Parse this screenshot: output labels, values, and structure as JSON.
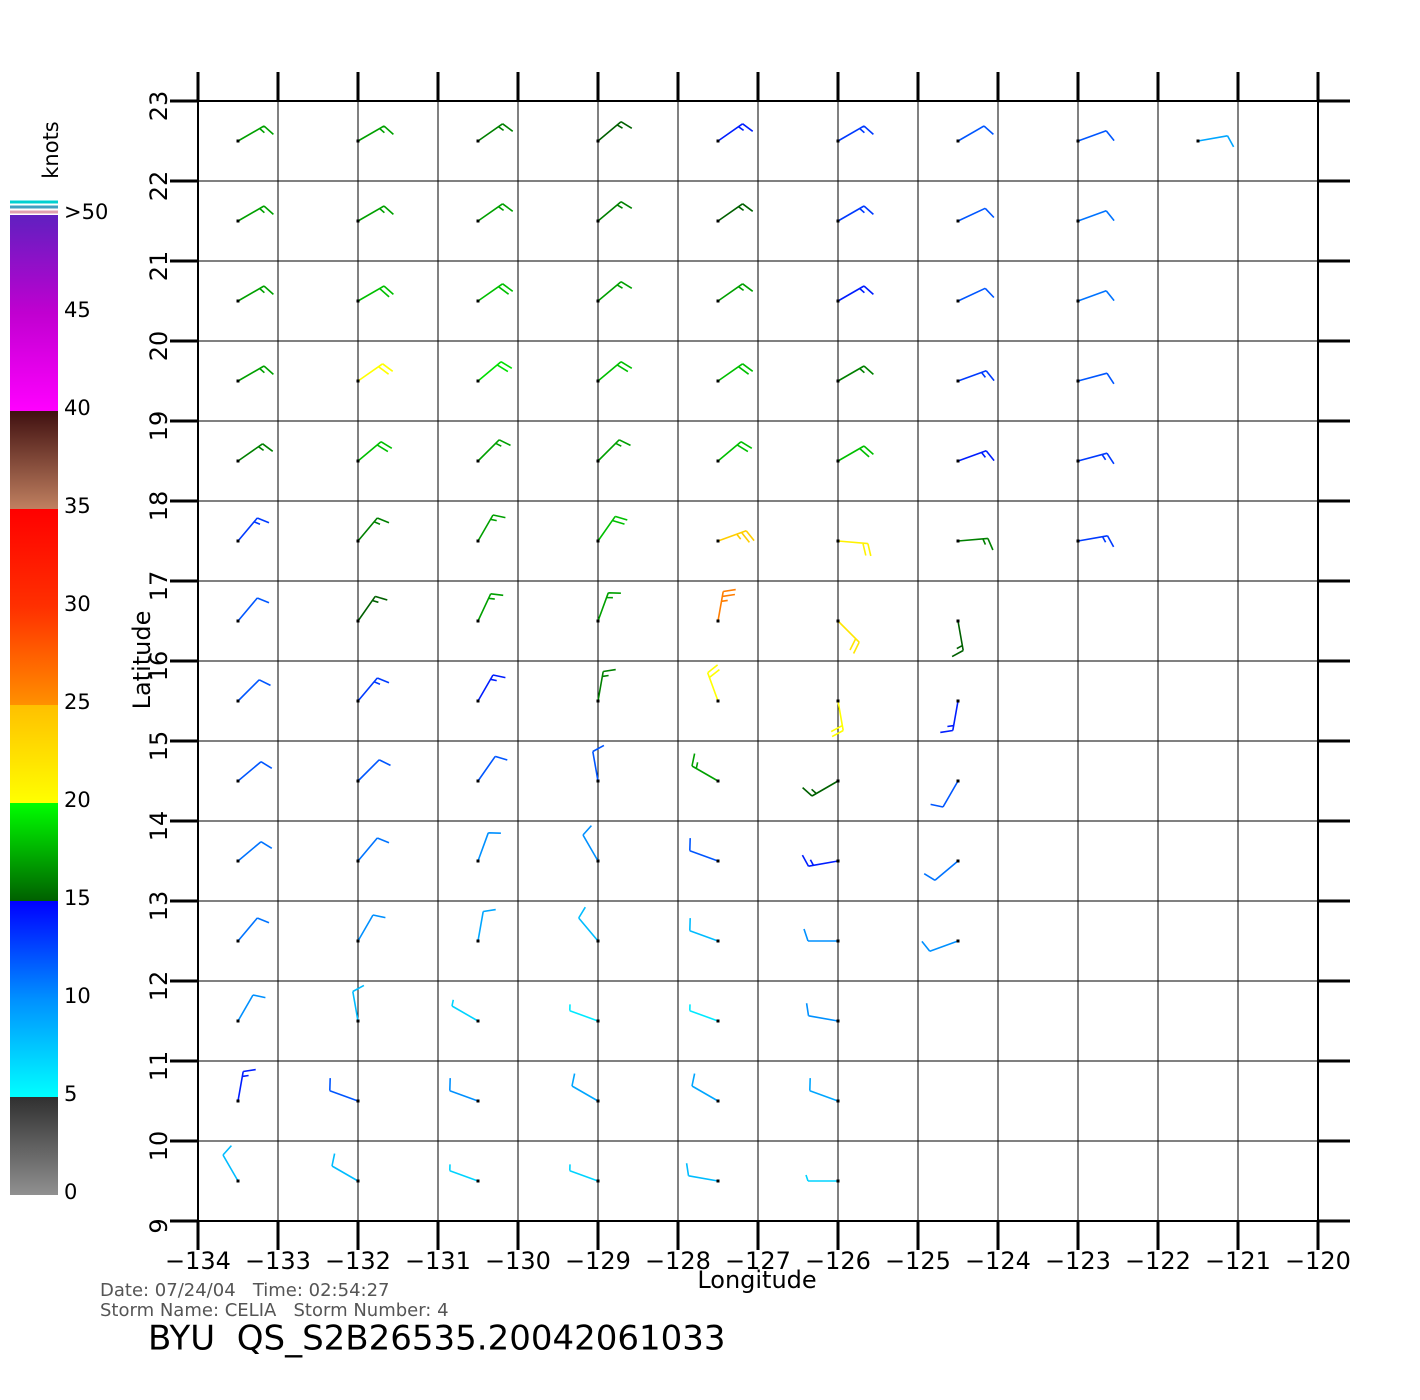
{
  "chart_data": {
    "type": "wind-barb",
    "xlabel": "Longitude",
    "ylabel": "Latitude",
    "xlim": [
      -134,
      -120
    ],
    "ylim": [
      9,
      23
    ],
    "xticks": [
      {
        "value": -134,
        "label": "−134"
      },
      {
        "value": -133,
        "label": "−133"
      },
      {
        "value": -132,
        "label": "−132"
      },
      {
        "value": -131,
        "label": "−131"
      },
      {
        "value": -130,
        "label": "−130"
      },
      {
        "value": -129,
        "label": "−129"
      },
      {
        "value": -128,
        "label": "−128"
      },
      {
        "value": -127,
        "label": "−127"
      },
      {
        "value": -126,
        "label": "−126"
      },
      {
        "value": -125,
        "label": "−125"
      },
      {
        "value": -124,
        "label": "−124"
      },
      {
        "value": -123,
        "label": "−123"
      },
      {
        "value": -122,
        "label": "−122"
      },
      {
        "value": -121,
        "label": "−121"
      },
      {
        "value": -120,
        "label": "−120"
      }
    ],
    "yticks": [
      9,
      10,
      11,
      12,
      13,
      14,
      15,
      16,
      17,
      18,
      19,
      20,
      21,
      22,
      23
    ],
    "grid": true,
    "barbs": {
      "lon": [
        -133.5,
        -132,
        -130.5,
        -129,
        -127.5,
        -126,
        -124.5,
        -123,
        -121.5,
        -133.5,
        -132,
        -130.5,
        -129,
        -127.5,
        -126,
        -124.5,
        -123,
        -133.5,
        -132,
        -130.5,
        -129,
        -127.5,
        -126,
        -124.5,
        -123,
        -133.5,
        -132,
        -130.5,
        -129,
        -127.5,
        -126,
        -124.5,
        -123,
        -133.5,
        -132,
        -130.5,
        -129,
        -127.5,
        -126,
        -124.5,
        -123,
        -133.5,
        -132,
        -130.5,
        -129,
        -127.5,
        -126,
        -124.5,
        -123,
        -133.5,
        -132,
        -130.5,
        -129,
        -127.5,
        -126,
        -124.5,
        -133.5,
        -132,
        -130.5,
        -129,
        -127.5,
        -126,
        -124.5,
        -133.5,
        -132,
        -130.5,
        -129,
        -127.5,
        -126,
        -124.5,
        -133.5,
        -132,
        -130.5,
        -129,
        -127.5,
        -126,
        -124.5,
        -133.5,
        -132,
        -130.5,
        -129,
        -127.5,
        -126,
        -124.5,
        -133.5,
        -132,
        -130.5,
        -129,
        -127.5,
        -126,
        -133.5,
        -132,
        -130.5,
        -129,
        -127.5,
        -126,
        -133.5,
        -132,
        -130.5,
        -129,
        -127.5,
        -126
      ],
      "lat": [
        22.5,
        22.5,
        22.5,
        22.5,
        22.5,
        22.5,
        22.5,
        22.5,
        22.5,
        21.5,
        21.5,
        21.5,
        21.5,
        21.5,
        21.5,
        21.5,
        21.5,
        20.5,
        20.5,
        20.5,
        20.5,
        20.5,
        20.5,
        20.5,
        20.5,
        19.5,
        19.5,
        19.5,
        19.5,
        19.5,
        19.5,
        19.5,
        19.5,
        18.5,
        18.5,
        18.5,
        18.5,
        18.5,
        18.5,
        18.5,
        18.5,
        17.5,
        17.5,
        17.5,
        17.5,
        17.5,
        17.5,
        17.5,
        17.5,
        16.5,
        16.5,
        16.5,
        16.5,
        16.5,
        16.5,
        16.5,
        15.5,
        15.5,
        15.5,
        15.5,
        15.5,
        15.5,
        15.5,
        14.5,
        14.5,
        14.5,
        14.5,
        14.5,
        14.5,
        14.5,
        13.5,
        13.5,
        13.5,
        13.5,
        13.5,
        13.5,
        13.5,
        12.5,
        12.5,
        12.5,
        12.5,
        12.5,
        12.5,
        12.5,
        11.5,
        11.5,
        11.5,
        11.5,
        11.5,
        11.5,
        10.5,
        10.5,
        10.5,
        10.5,
        10.5,
        10.5,
        9.5,
        9.5,
        9.5,
        9.5,
        9.5,
        9.5
      ],
      "speed": [
        17,
        17,
        16,
        15,
        14,
        13,
        12,
        12,
        9,
        17,
        17,
        17,
        16,
        15,
        13,
        12,
        11,
        17,
        18,
        18,
        17,
        17,
        14,
        12,
        11,
        17,
        20,
        19,
        18,
        18,
        16,
        13,
        12,
        16,
        18,
        17,
        17,
        18,
        18,
        14,
        13,
        13,
        16,
        17,
        18,
        24,
        21,
        16,
        13,
        12,
        15,
        17,
        17,
        26,
        22,
        15,
        12,
        13,
        14,
        16,
        20,
        20,
        14,
        12,
        12,
        12,
        12,
        17,
        15,
        12,
        11,
        11,
        10,
        10,
        12,
        14,
        11,
        11,
        10,
        9,
        8,
        8,
        10,
        10,
        10,
        8,
        7,
        6,
        6,
        10,
        14,
        12,
        10,
        9,
        9,
        9,
        8,
        8,
        7,
        7,
        8,
        7
      ],
      "direction": [
        60,
        60,
        55,
        50,
        55,
        60,
        60,
        70,
        80,
        60,
        60,
        55,
        50,
        55,
        60,
        65,
        70,
        60,
        60,
        55,
        50,
        55,
        60,
        65,
        70,
        60,
        55,
        50,
        50,
        55,
        60,
        70,
        75,
        55,
        50,
        45,
        45,
        50,
        60,
        70,
        75,
        40,
        40,
        30,
        35,
        70,
        95,
        85,
        80,
        40,
        35,
        25,
        20,
        10,
        135,
        170,
        45,
        40,
        30,
        10,
        340,
        170,
        190,
        50,
        45,
        35,
        350,
        300,
        240,
        210,
        50,
        40,
        20,
        330,
        290,
        260,
        230,
        40,
        30,
        10,
        320,
        290,
        270,
        250,
        30,
        350,
        300,
        290,
        290,
        280,
        10,
        290,
        290,
        300,
        300,
        290,
        330,
        300,
        290,
        290,
        280,
        270
      ]
    },
    "colorbar": {
      "label": "knots",
      "range": [
        0,
        50
      ],
      "ticks": [
        0,
        5,
        10,
        15,
        20,
        25,
        30,
        35,
        40,
        45,
        {
          "value": 50,
          "label": ">50"
        }
      ],
      "stops": [
        [
          0,
          "#909090"
        ],
        [
          5,
          "#303030"
        ],
        [
          5,
          "#00ffff"
        ],
        [
          10,
          "#0090ff"
        ],
        [
          15,
          "#0000ff"
        ],
        [
          15,
          "#006000"
        ],
        [
          20,
          "#00ff00"
        ],
        [
          20,
          "#ffff00"
        ],
        [
          25,
          "#ffc000"
        ],
        [
          25,
          "#ff9000"
        ],
        [
          30,
          "#ff3000"
        ],
        [
          35,
          "#ff0000"
        ],
        [
          35,
          "#c08060"
        ],
        [
          40,
          "#401010"
        ],
        [
          40,
          "#ff00ff"
        ],
        [
          45,
          "#c000d0"
        ],
        [
          50,
          "#6020c0"
        ]
      ]
    },
    "date_line": "Date: 07/24/04   Time: 02:54:27",
    "storm_line": "Storm Name: CELIA   Storm Number: 4",
    "product": "BYU  QS_S2B26535.20042061033"
  }
}
